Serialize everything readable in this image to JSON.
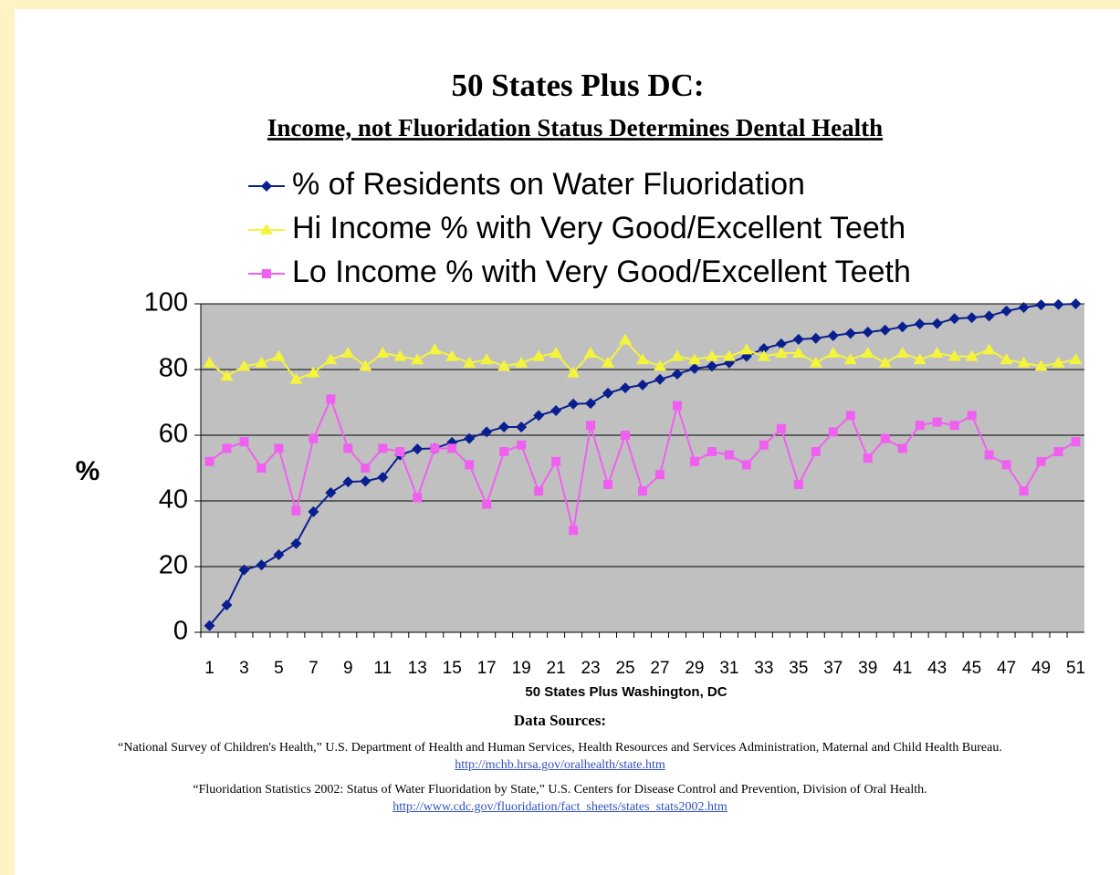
{
  "chart_data": {
    "type": "line",
    "title": "50 States Plus DC:",
    "subtitle": "Income, not Fluoridation Status Determines Dental Health",
    "y_label": "%",
    "x_label": "50 States Plus Washington, DC",
    "categories": [
      "1",
      null,
      "3",
      null,
      "5",
      null,
      "7",
      null,
      "9",
      null,
      "11",
      null,
      "13",
      null,
      "15",
      null,
      "17",
      null,
      "19",
      null,
      "21",
      null,
      "23",
      null,
      "25",
      null,
      "27",
      null,
      "29",
      null,
      "31",
      null,
      "33",
      null,
      "35",
      null,
      "37",
      null,
      "39",
      null,
      "41",
      null,
      "43",
      null,
      "45",
      null,
      "47",
      null,
      "49",
      null,
      "51"
    ],
    "series": [
      {
        "name": "% of Residents on Water Fluoridation",
        "color": "#0a1f8f",
        "marker": "diamond",
        "values": [
          2,
          8.3,
          19,
          20.5,
          23.6,
          27,
          36.7,
          42.5,
          45.8,
          46,
          47.2,
          54,
          55.8,
          56,
          57.8,
          59,
          61,
          62.5,
          62.5,
          66,
          67.5,
          69.5,
          69.7,
          72.8,
          74.4,
          75.3,
          77,
          78.6,
          80.3,
          81,
          82,
          84,
          86.4,
          87.8,
          89.2,
          89.5,
          90.3,
          91,
          91.4,
          92,
          93,
          93.9,
          94,
          95.5,
          95.8,
          96.3,
          97.8,
          98.9,
          99.7,
          99.8,
          100
        ]
      },
      {
        "name": "Hi Income % with Very Good/Excellent Teeth",
        "color": "#f4f43c",
        "marker": "triangle",
        "values": [
          82,
          78,
          81,
          82,
          84,
          77,
          79,
          83,
          85,
          81,
          85,
          84,
          83,
          86,
          84,
          82,
          83,
          81,
          82,
          84,
          85,
          79,
          85,
          82,
          89,
          83,
          81,
          84,
          83,
          84,
          84,
          86,
          84,
          85,
          85,
          82,
          85,
          83,
          85,
          82,
          85,
          83,
          85,
          84,
          84,
          86,
          83,
          82,
          81,
          82,
          83
        ]
      },
      {
        "name": "Lo Income % with Very Good/Excellent Teeth",
        "color": "#f060f0",
        "marker": "square",
        "values": [
          52,
          56,
          58,
          50,
          56,
          37,
          59,
          71,
          56,
          50,
          56,
          55,
          41,
          56,
          56,
          51,
          39,
          55,
          57,
          43,
          52,
          31,
          63,
          45,
          60,
          43,
          48,
          69,
          52,
          55,
          54,
          51,
          57,
          62,
          45,
          55,
          61,
          66,
          53,
          59,
          56,
          63,
          64,
          63,
          66,
          54,
          51,
          43,
          52,
          55,
          58
        ]
      }
    ],
    "ylim": [
      0,
      100
    ],
    "yticks": [
      0,
      20,
      40,
      60,
      80,
      100
    ],
    "grid": true,
    "legend": "top"
  },
  "sources_title": "Data Sources:",
  "sources": [
    {
      "text": "“National Survey of Children's Health,”  U.S. Department of Health and Human Services, Health Resources and Services Administration, Maternal and Child Health Bureau.",
      "link": "http://mchb.hrsa.gov/oralhealth/state.htm"
    },
    {
      "text": "“Fluoridation Statistics 2002: Status of Water Fluoridation by State,” U.S. Centers for Disease Control and Prevention, Division of Oral Health.",
      "link": "http://www.cdc.gov/fluoridation/fact_sheets/states_stats2002.htm"
    }
  ]
}
